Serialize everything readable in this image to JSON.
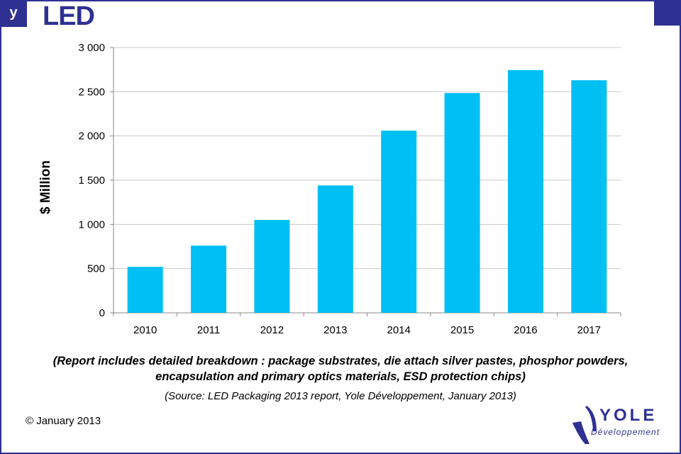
{
  "header": {
    "title": "LED"
  },
  "chart_data": {
    "type": "bar",
    "categories": [
      "2010",
      "2011",
      "2012",
      "2013",
      "2014",
      "2015",
      "2016",
      "2017"
    ],
    "values": [
      520,
      760,
      1050,
      1440,
      2060,
      2485,
      2745,
      2630
    ],
    "title": "",
    "xlabel": "",
    "ylabel": "$ Million",
    "ylim": [
      0,
      3000
    ],
    "yticks": [
      0,
      500,
      1000,
      1500,
      2000,
      2500,
      3000
    ],
    "ytick_labels": [
      "0",
      "500",
      "1 000",
      "1 500",
      "2 000",
      "2 500",
      "3 000"
    ],
    "grid": true,
    "bar_color": "#00bff3"
  },
  "notes": {
    "line1": "(Report includes detailed breakdown : package substrates, die attach silver pastes, phosphor powders,",
    "line2": "encapsulation and primary optics materials, ESD protection chips)",
    "source": "(Source: LED Packaging 2013 report, Yole Développement, January 2013)"
  },
  "footer": {
    "copyright": "© January 2013",
    "logo_text": "YOLE",
    "logo_sub": "Développement"
  },
  "colors": {
    "brand": "#2e3192",
    "bars": "#00bff3"
  }
}
